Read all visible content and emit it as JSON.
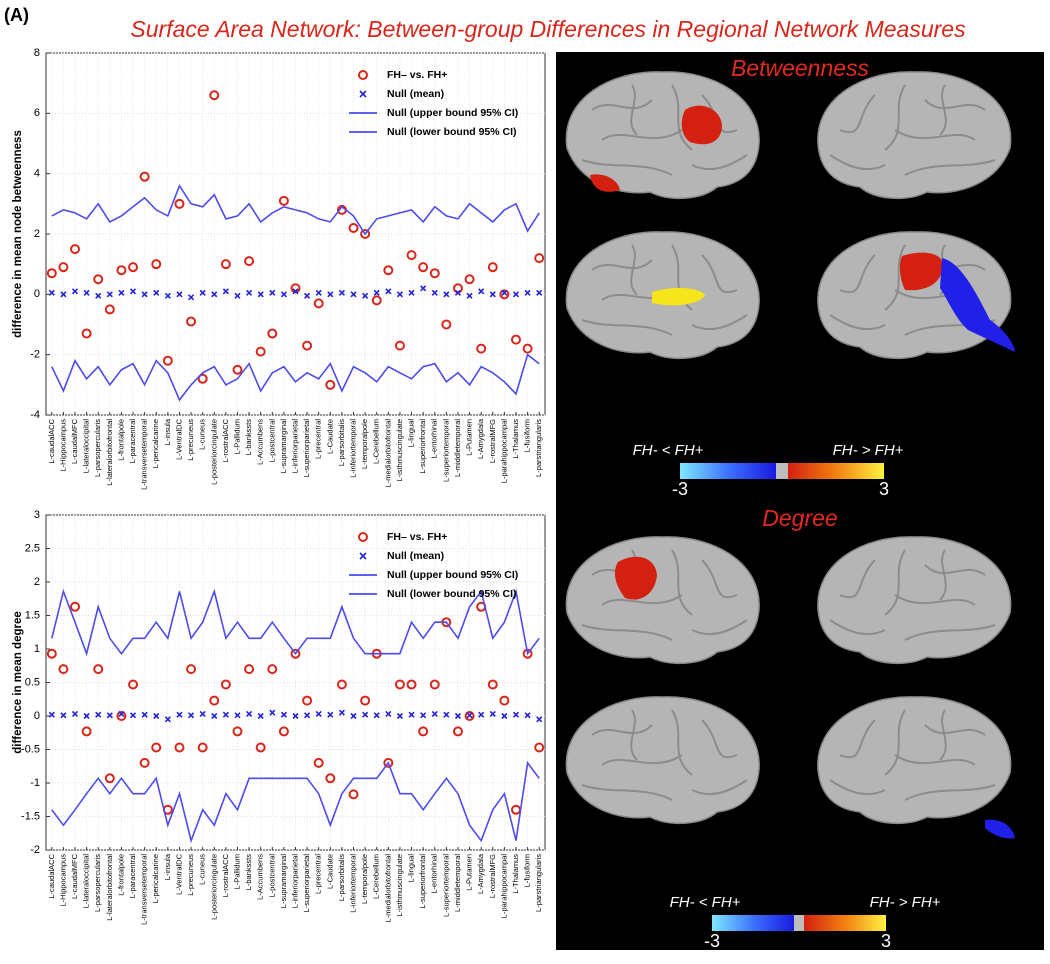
{
  "panel_label": "(A)",
  "title": "Surface Area Network: Between-group Differences in Regional Network Measures",
  "chart_data": [
    {
      "type": "line",
      "ylabel": "difference in mean node betweenness",
      "categories": [
        "L-caudalACC",
        "L-Hippocampus",
        "L-caudalMFC",
        "L-lateraloccipital",
        "L-parsopercularis",
        "L-lateralorbitofrontal",
        "L-frontalpole",
        "L-paracentral",
        "L-transversetemporal",
        "L-pericalcarine",
        "L-insula",
        "L-VentralDC",
        "L-precuneus",
        "L-cuneus",
        "L-posteriorcingulate",
        "L-rostralACC",
        "L-Pallidum",
        "L-bankssts",
        "L-Accumbens",
        "L-postcentral",
        "L-supramarginal",
        "L-inferiorparietal",
        "L-superiorparietal",
        "L-precentral",
        "L-Caudate",
        "L-parsorbitalis",
        "L-inferiortemporal",
        "L-temporalpole",
        "L-Cerebellum",
        "L-medialorbitofrontal",
        "L-isthmuscingulate",
        "L-lingual",
        "L-superiorfrontal",
        "L-entorhinal",
        "L-superiortemporal",
        "L-middletemporal",
        "L-Putamen",
        "L-Amygdala",
        "L-rostralMFG",
        "L-parahippocampal",
        "L-Thalamus",
        "L-fusiform",
        "L-parstriangularis"
      ],
      "ylim": [
        -4,
        8
      ],
      "yticks": [
        -4,
        -2,
        0,
        2,
        4,
        6,
        8
      ],
      "grid": true,
      "legend": "upper right",
      "series": [
        {
          "name": "FH– vs. FH+",
          "style": "marker",
          "marker": "o",
          "color": "#d8261a",
          "values": [
            0.7,
            0.9,
            1.5,
            -1.3,
            0.5,
            -0.5,
            0.8,
            0.9,
            3.9,
            1.0,
            -2.2,
            3.0,
            -0.9,
            -2.8,
            6.6,
            1.0,
            -2.5,
            1.1,
            -1.9,
            -1.3,
            3.1,
            0.2,
            -1.7,
            -0.3,
            -3.0,
            2.8,
            2.2,
            2.0,
            -0.2,
            0.8,
            -1.7,
            1.3,
            0.9,
            0.7,
            -1.0,
            0.2,
            0.5,
            -1.8,
            0.9,
            0,
            -1.5,
            -1.8,
            1.2
          ]
        },
        {
          "name": "Null (mean)",
          "style": "marker",
          "marker": "x",
          "color": "#2323d6",
          "values": [
            0.05,
            0,
            0.1,
            0.05,
            -0.05,
            0,
            0.05,
            0.1,
            0,
            0.05,
            -0.05,
            0,
            -0.1,
            0.05,
            0,
            0.1,
            -0.05,
            0.05,
            0,
            0.05,
            0,
            0.1,
            -0.05,
            0.05,
            0,
            0.05,
            0,
            -0.05,
            0.05,
            0.1,
            0,
            0.05,
            0.2,
            0.05,
            0,
            0.05,
            -0.05,
            0.1,
            0,
            0.05,
            0,
            0.05,
            0.05
          ]
        },
        {
          "name": "Null (upper bound 95% CI)",
          "style": "line",
          "color": "#4b4bef",
          "values": [
            2.6,
            2.8,
            2.7,
            2.5,
            3.0,
            2.4,
            2.6,
            2.9,
            3.2,
            2.8,
            2.6,
            3.6,
            3.0,
            2.9,
            3.3,
            2.5,
            2.6,
            3.0,
            2.4,
            2.7,
            2.9,
            2.8,
            2.7,
            2.5,
            2.4,
            2.9,
            2.6,
            2.0,
            2.5,
            2.6,
            2.7,
            2.8,
            2.4,
            2.9,
            2.6,
            2.5,
            3.0,
            2.7,
            2.4,
            2.8,
            3.0,
            2.1,
            2.7
          ]
        },
        {
          "name": "Null (lower bound 95% CI)",
          "style": "line",
          "color": "#4b4bef",
          "values": [
            -2.4,
            -3.2,
            -2.2,
            -2.8,
            -2.4,
            -3.0,
            -2.5,
            -2.3,
            -3.0,
            -2.2,
            -2.6,
            -3.5,
            -3.0,
            -2.6,
            -2.4,
            -3.0,
            -2.8,
            -2.3,
            -3.2,
            -2.6,
            -2.4,
            -2.9,
            -2.6,
            -2.8,
            -2.3,
            -3.2,
            -2.4,
            -2.6,
            -2.9,
            -2.4,
            -2.6,
            -2.8,
            -2.4,
            -2.3,
            -2.9,
            -2.6,
            -3.0,
            -2.4,
            -2.6,
            -2.9,
            -3.3,
            -2.0,
            -2.3
          ]
        }
      ]
    },
    {
      "type": "line",
      "ylabel": "difference in mean degree",
      "categories": [
        "L-caudalACC",
        "L-Hippocampus",
        "L-caudalMFC",
        "L-lateraloccipital",
        "L-parsopercularis",
        "L-lateralorbitofrontal",
        "L-frontalpole",
        "L-paracentral",
        "L-transversetemporal",
        "L-pericalcarine",
        "L-insula",
        "L-VentralDC",
        "L-precuneus",
        "L-cuneus",
        "L-posteriorcingulate",
        "L-rostralACC",
        "L-Pallidum",
        "L-bankssts",
        "L-Accumbens",
        "L-postcentral",
        "L-supramarginal",
        "L-inferiorparietal",
        "L-superiorparietal",
        "L-precentral",
        "L-Caudate",
        "L-parsorbitalis",
        "L-inferiortemporal",
        "L-temporalpole",
        "L-Cerebellum",
        "L-medialorbitofrontal",
        "L-isthmuscingulate",
        "L-lingual",
        "L-superiorfrontal",
        "L-entorhinal",
        "L-superiortemporal",
        "L-middletemporal",
        "L-Putamen",
        "L-Amygdala",
        "L-rostralMFG",
        "L-parahippocampal",
        "L-Thalamus",
        "L-fusiform",
        "L-parstriangularis"
      ],
      "ylim": [
        -2,
        3
      ],
      "yticks": [
        -2,
        -1.5,
        -1,
        -0.5,
        0,
        0.5,
        1,
        1.5,
        2,
        2.5,
        3
      ],
      "grid": true,
      "legend": "upper right",
      "series": [
        {
          "name": "FH– vs. FH+",
          "style": "marker",
          "marker": "o",
          "color": "#d8261a",
          "values": [
            0.93,
            0.7,
            1.63,
            -0.23,
            0.7,
            -0.93,
            0,
            0.47,
            -0.7,
            -0.47,
            -1.4,
            -0.47,
            0.7,
            -0.47,
            0.23,
            0.47,
            -0.23,
            0.7,
            -0.47,
            0.7,
            -0.23,
            0.93,
            0.23,
            -0.7,
            -0.93,
            0.47,
            -1.17,
            0.23,
            0.93,
            -0.7,
            0.47,
            0.47,
            -0.23,
            0.47,
            1.4,
            -0.23,
            0,
            1.63,
            0.47,
            0.23,
            -1.4,
            0.93,
            -0.47
          ]
        },
        {
          "name": "Null (mean)",
          "style": "marker",
          "marker": "x",
          "color": "#2323d6",
          "values": [
            0.02,
            0.01,
            0.03,
            0,
            0.02,
            0.01,
            0.03,
            0.01,
            0.02,
            0,
            -0.05,
            0.02,
            0.01,
            0.03,
            0,
            0.02,
            0.01,
            0.03,
            0,
            0.05,
            0.02,
            0,
            0.01,
            0.03,
            0.02,
            0.05,
            0,
            0.02,
            0.01,
            0.03,
            0,
            0.02,
            0.01,
            0.03,
            0.02,
            0,
            0.01,
            0.02,
            0.03,
            0,
            0.02,
            0.01,
            -0.05
          ]
        },
        {
          "name": "Null (upper bound 95% CI)",
          "style": "line",
          "color": "#4b4bef",
          "values": [
            1.16,
            1.86,
            1.4,
            0.93,
            1.63,
            1.16,
            0.93,
            1.16,
            1.16,
            1.4,
            1.16,
            1.86,
            1.16,
            1.4,
            1.86,
            1.16,
            1.4,
            1.16,
            1.16,
            1.4,
            1.16,
            0.93,
            1.16,
            1.16,
            1.16,
            1.63,
            1.16,
            0.93,
            0.93,
            0.93,
            0.93,
            1.4,
            1.16,
            1.4,
            1.4,
            1.16,
            1.63,
            1.86,
            1.16,
            1.4,
            1.86,
            0.93,
            1.16
          ]
        },
        {
          "name": "Null (lower bound 95% CI)",
          "style": "line",
          "color": "#4b4bef",
          "values": [
            -1.4,
            -1.63,
            -1.4,
            -1.16,
            -0.93,
            -1.16,
            -0.93,
            -1.16,
            -1.16,
            -0.93,
            -1.63,
            -1.16,
            -1.86,
            -1.4,
            -1.63,
            -1.16,
            -1.4,
            -0.93,
            -0.93,
            -0.93,
            -0.93,
            -0.93,
            -0.93,
            -1.16,
            -1.63,
            -1.16,
            -0.93,
            -0.93,
            -0.93,
            -0.7,
            -1.16,
            -1.16,
            -1.4,
            -1.16,
            -0.93,
            -1.16,
            -1.63,
            -1.86,
            -1.4,
            -1.16,
            -1.86,
            -0.7,
            -0.93
          ]
        }
      ]
    }
  ],
  "brain_panels": [
    {
      "title": "Betweenness",
      "colorbar": {
        "left_label": "FH- < FH+",
        "right_label": "FH- > FH+",
        "range": [
          -3,
          3
        ],
        "ticks": [
          -3,
          3
        ]
      }
    },
    {
      "title": "Degree",
      "colorbar": {
        "left_label": "FH- < FH+",
        "right_label": "FH- > FH+",
        "range": [
          -3,
          3
        ],
        "ticks": [
          -3,
          3
        ]
      }
    }
  ]
}
